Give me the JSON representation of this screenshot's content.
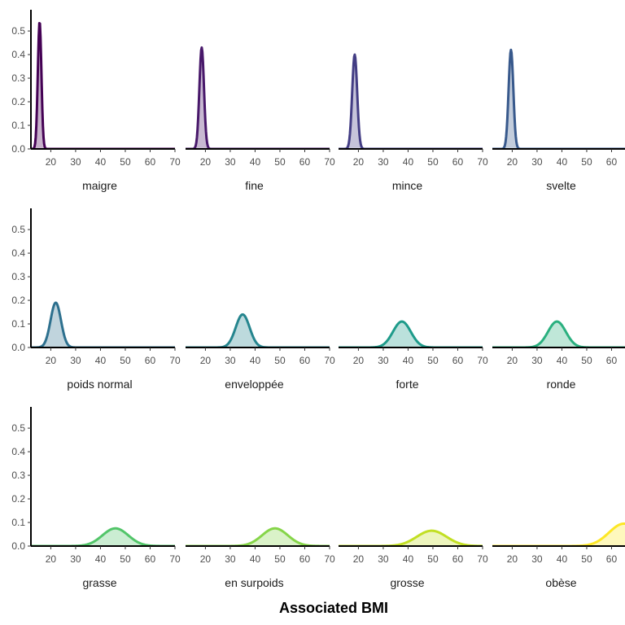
{
  "chart_data": {
    "type": "area",
    "xlabel": "Associated BMI",
    "ylabel": "",
    "xlim": [
      12,
      70
    ],
    "ylim": [
      0,
      0.59
    ],
    "x_ticks": [
      20,
      30,
      40,
      50,
      60,
      70
    ],
    "y_ticks": [
      0.0,
      0.1,
      0.2,
      0.3,
      0.4,
      0.5
    ],
    "y_tick_labels": [
      "0.0",
      "0.1",
      "0.2",
      "0.3",
      "0.4",
      "0.5"
    ],
    "grid": false,
    "facets": [
      {
        "label": "maigre",
        "peak_x": 15.5,
        "peak_y": 0.54,
        "sd": 0.72,
        "color": "#440154"
      },
      {
        "label": "fine",
        "peak_x": 18.5,
        "peak_y": 0.43,
        "sd": 0.92,
        "color": "#48186a"
      },
      {
        "label": "mince",
        "peak_x": 18.5,
        "peak_y": 0.4,
        "sd": 1.0,
        "color": "#433d84"
      },
      {
        "label": "svelte",
        "peak_x": 19.5,
        "peak_y": 0.42,
        "sd": 0.95,
        "color": "#38598c"
      },
      {
        "label": "poids normal",
        "peak_x": 22,
        "peak_y": 0.19,
        "sd": 2.1,
        "color": "#2d708e"
      },
      {
        "label": "enveloppée",
        "peak_x": 35,
        "peak_y": 0.14,
        "sd": 2.8,
        "color": "#25858e"
      },
      {
        "label": "forte",
        "peak_x": 37.5,
        "peak_y": 0.11,
        "sd": 3.6,
        "color": "#1e9b8a"
      },
      {
        "label": "ronde",
        "peak_x": 38,
        "peak_y": 0.11,
        "sd": 3.6,
        "color": "#2ab07f"
      },
      {
        "label": "grasse",
        "peak_x": 46,
        "peak_y": 0.075,
        "sd": 5.2,
        "color": "#52c569"
      },
      {
        "label": "en surpoids",
        "peak_x": 48,
        "peak_y": 0.075,
        "sd": 5.2,
        "color": "#86d549"
      },
      {
        "label": "grosse",
        "peak_x": 49.5,
        "peak_y": 0.065,
        "sd": 6.0,
        "color": "#c2df23"
      },
      {
        "label": "obèse",
        "peak_x": 65,
        "peak_y": 0.095,
        "sd": 6.0,
        "color": "#fde725"
      }
    ]
  }
}
